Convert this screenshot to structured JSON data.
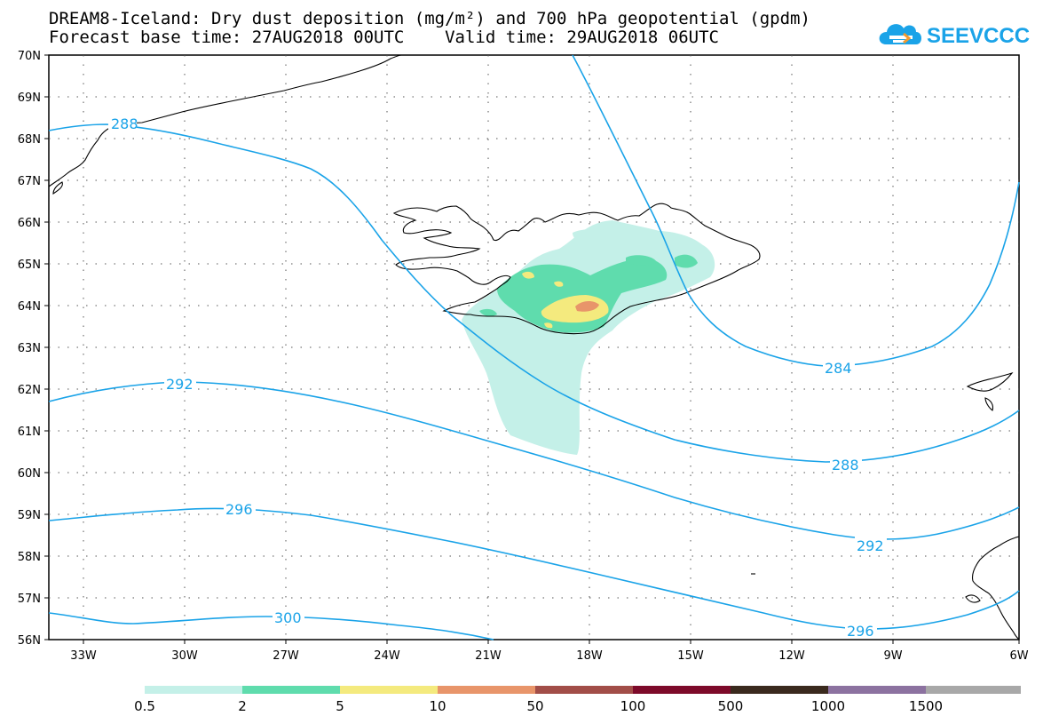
{
  "title": {
    "line1": "DREAM8-Iceland: Dry dust deposition (mg/m²) and 700 hPa geopotential (gpdm)",
    "line2": "Forecast base time: 27AUG2018 00UTC    Valid time: 29AUG2018 06UTC"
  },
  "logo": {
    "text": "SEEVCCC",
    "icon": "cloud-logo-icon",
    "color": "#1aa3e8"
  },
  "map": {
    "lat_labels": [
      "70N",
      "69N",
      "68N",
      "67N",
      "66N",
      "65N",
      "64N",
      "63N",
      "62N",
      "61N",
      "60N",
      "59N",
      "58N",
      "57N",
      "56N"
    ],
    "lon_labels": [
      "33W",
      "30W",
      "27W",
      "24W",
      "21W",
      "18W",
      "15W",
      "12W",
      "9W",
      "6W"
    ],
    "contour_color": "#1aa3e8",
    "contour_labels": [
      "288",
      "292",
      "296",
      "300",
      "284",
      "288",
      "292",
      "296"
    ]
  },
  "colorbar": {
    "labels": [
      "0.5",
      "2",
      "5",
      "10",
      "50",
      "100",
      "500",
      "1000",
      "1500"
    ],
    "colors": [
      "#c4f0e8",
      "#5fdcad",
      "#f4ea7e",
      "#e8956a",
      "#a24e48",
      "#7d0a2a",
      "#3a2a1e",
      "#8c72a0",
      "#a8a8a8"
    ]
  }
}
